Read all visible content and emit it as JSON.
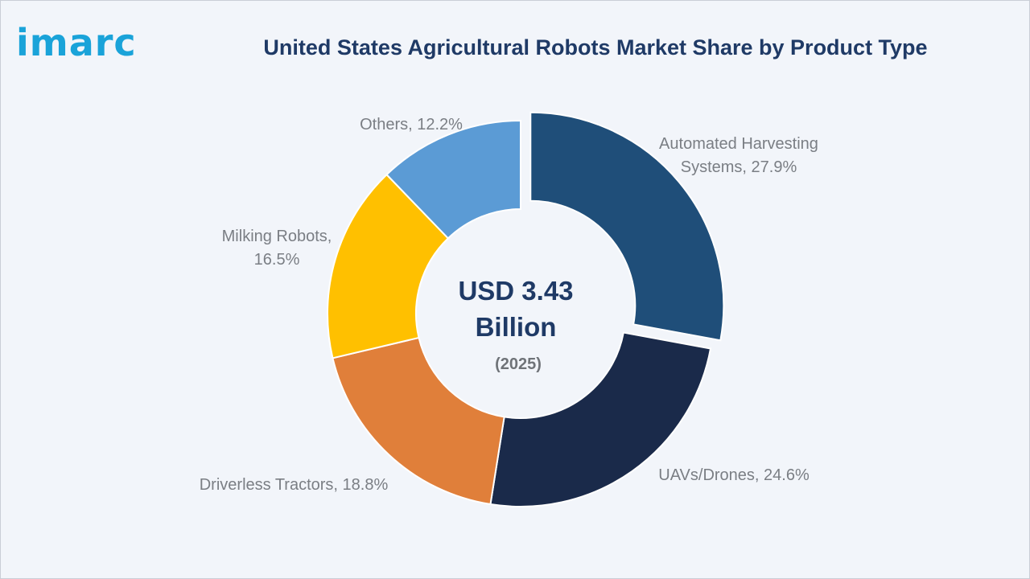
{
  "brand": {
    "logo_text": "imarc"
  },
  "chart_data": {
    "type": "pie",
    "variant": "donut",
    "title": "United States Agricultural Robots Market Share by Product Type",
    "unit": "%",
    "center": {
      "value_line1": "USD 3.43",
      "value_line2": "Billion",
      "year": "(2025)"
    },
    "slices": [
      {
        "label": "Automated Harvesting Systems",
        "value": 27.9,
        "color": "#1f4e79",
        "exploded": true,
        "label_lines": [
          "Automated Harvesting",
          "Systems, 27.9%"
        ]
      },
      {
        "label": "UAVs/Drones",
        "value": 24.6,
        "color": "#1a2a4a",
        "exploded": false,
        "label_lines": [
          "UAVs/Drones, 24.6%"
        ]
      },
      {
        "label": "Driverless Tractors",
        "value": 18.8,
        "color": "#e07f3a",
        "exploded": false,
        "label_lines": [
          "Driverless Tractors, 18.8%"
        ]
      },
      {
        "label": "Milking Robots",
        "value": 16.5,
        "color": "#ffc000",
        "exploded": false,
        "label_lines": [
          "Milking Robots,",
          "16.5%"
        ]
      },
      {
        "label": "Others",
        "value": 12.2,
        "color": "#5b9bd5",
        "exploded": false,
        "label_lines": [
          "Others, 12.2%"
        ]
      }
    ]
  }
}
